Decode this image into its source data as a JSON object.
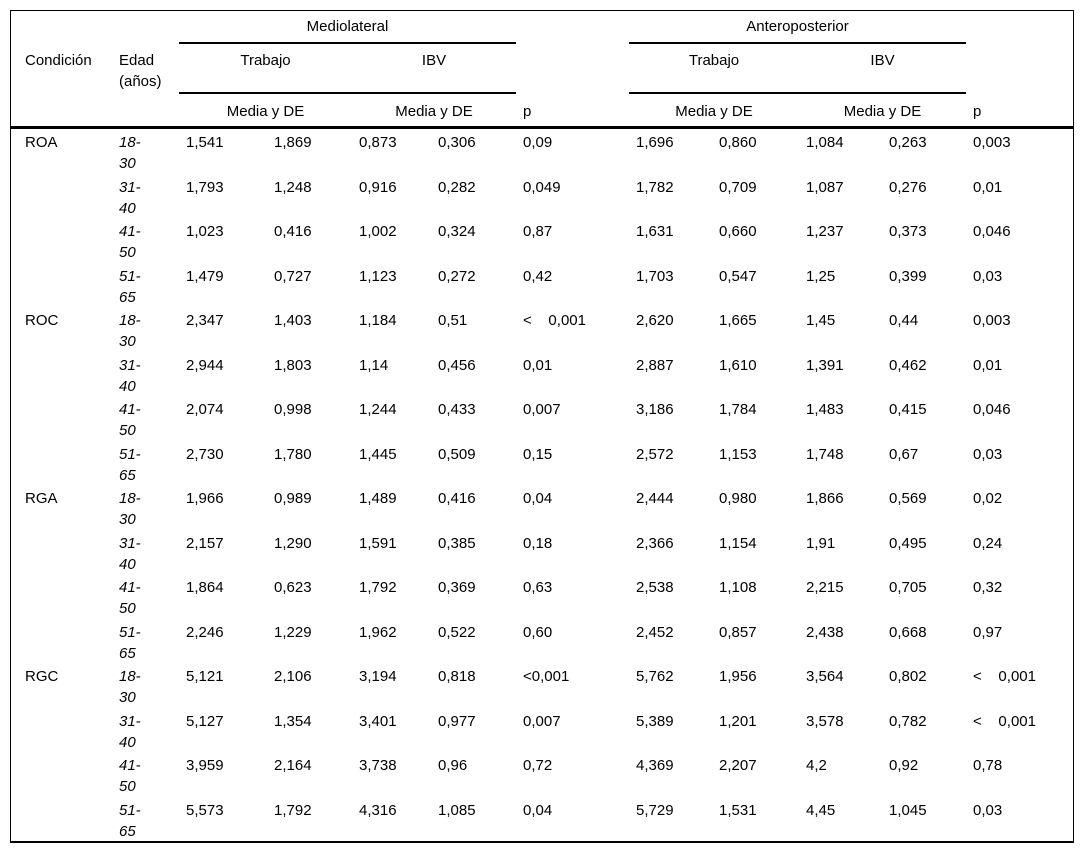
{
  "table": {
    "header": {
      "col_condicion": "Condición",
      "col_edad": "Edad\n(años)",
      "group_mediolateral": "Mediolateral",
      "group_anteroposterior": "Anteroposterior",
      "sub_trabajo": "Trabajo",
      "sub_ibv": "IBV",
      "media_de": "Media y DE",
      "p_label": "p"
    },
    "rows": [
      {
        "condicion": "ROA",
        "edad": "18-\n30",
        "ml_trabajo": [
          "1,541",
          "1,869"
        ],
        "ml_ibv": [
          "0,873",
          "0,306"
        ],
        "p_ml": "0,09",
        "ap_trabajo": [
          "1,696",
          "0,860"
        ],
        "ap_ibv": [
          "1,084",
          "0,263"
        ],
        "p_ap": "0,003"
      },
      {
        "condicion": "",
        "edad": "31-\n40",
        "ml_trabajo": [
          "1,793",
          "1,248"
        ],
        "ml_ibv": [
          "0,916",
          "0,282"
        ],
        "p_ml": "0,049",
        "ap_trabajo": [
          "1,782",
          "0,709"
        ],
        "ap_ibv": [
          "1,087",
          "0,276"
        ],
        "p_ap": "0,01"
      },
      {
        "condicion": "",
        "edad": "41-\n50",
        "ml_trabajo": [
          "1,023",
          "0,416"
        ],
        "ml_ibv": [
          "1,002",
          "0,324"
        ],
        "p_ml": "0,87",
        "ap_trabajo": [
          "1,631",
          "0,660"
        ],
        "ap_ibv": [
          "1,237",
          "0,373"
        ],
        "p_ap": "0,046"
      },
      {
        "condicion": "",
        "edad": "51-\n65",
        "ml_trabajo": [
          "1,479",
          "0,727"
        ],
        "ml_ibv": [
          "1,123",
          "0,272"
        ],
        "p_ml": "0,42",
        "ap_trabajo": [
          "1,703",
          "0,547"
        ],
        "ap_ibv": [
          "1,25",
          "0,399"
        ],
        "p_ap": "0,03"
      },
      {
        "condicion": "ROC",
        "edad": "18-\n30",
        "ml_trabajo": [
          "2,347",
          "1,403"
        ],
        "ml_ibv": [
          "1,184",
          "0,51"
        ],
        "p_ml": "<    0,001",
        "ap_trabajo": [
          "2,620",
          "1,665"
        ],
        "ap_ibv": [
          "1,45",
          "0,44"
        ],
        "p_ap": "0,003"
      },
      {
        "condicion": "",
        "edad": "31-\n40",
        "ml_trabajo": [
          "2,944",
          "1,803"
        ],
        "ml_ibv": [
          "1,14",
          "0,456"
        ],
        "p_ml": "0,01",
        "ap_trabajo": [
          "2,887",
          "1,610"
        ],
        "ap_ibv": [
          "1,391",
          "0,462"
        ],
        "p_ap": "0,01"
      },
      {
        "condicion": "",
        "edad": "41-\n50",
        "ml_trabajo": [
          "2,074",
          "0,998"
        ],
        "ml_ibv": [
          "1,244",
          "0,433"
        ],
        "p_ml": "0,007",
        "ap_trabajo": [
          "3,186",
          "1,784"
        ],
        "ap_ibv": [
          "1,483",
          "0,415"
        ],
        "p_ap": "0,046"
      },
      {
        "condicion": "",
        "edad": "51-\n65",
        "ml_trabajo": [
          "2,730",
          "1,780"
        ],
        "ml_ibv": [
          "1,445",
          "0,509"
        ],
        "p_ml": "0,15",
        "ap_trabajo": [
          "2,572",
          "1,153"
        ],
        "ap_ibv": [
          "1,748",
          "0,67"
        ],
        "p_ap": "0,03"
      },
      {
        "condicion": "RGA",
        "edad": "18-\n30",
        "ml_trabajo": [
          "1,966",
          "0,989"
        ],
        "ml_ibv": [
          "1,489",
          "0,416"
        ],
        "p_ml": "0,04",
        "ap_trabajo": [
          "2,444",
          "0,980"
        ],
        "ap_ibv": [
          "1,866",
          "0,569"
        ],
        "p_ap": "0,02"
      },
      {
        "condicion": "",
        "edad": "31-\n40",
        "ml_trabajo": [
          "2,157",
          "1,290"
        ],
        "ml_ibv": [
          "1,591",
          "0,385"
        ],
        "p_ml": "0,18",
        "ap_trabajo": [
          "2,366",
          "1,154"
        ],
        "ap_ibv": [
          "1,91",
          "0,495"
        ],
        "p_ap": "0,24"
      },
      {
        "condicion": "",
        "edad": "41-\n50",
        "ml_trabajo": [
          "1,864",
          "0,623"
        ],
        "ml_ibv": [
          "1,792",
          "0,369"
        ],
        "p_ml": "0,63",
        "ap_trabajo": [
          "2,538",
          "1,108"
        ],
        "ap_ibv": [
          "2,215",
          "0,705"
        ],
        "p_ap": "0,32"
      },
      {
        "condicion": "",
        "edad": "51-\n65",
        "ml_trabajo": [
          "2,246",
          "1,229"
        ],
        "ml_ibv": [
          "1,962",
          "0,522"
        ],
        "p_ml": "0,60",
        "ap_trabajo": [
          "2,452",
          "0,857"
        ],
        "ap_ibv": [
          "2,438",
          "0,668"
        ],
        "p_ap": "0,97"
      },
      {
        "condicion": "RGC",
        "edad": "18-\n30",
        "ml_trabajo": [
          "5,121",
          "2,106"
        ],
        "ml_ibv": [
          "3,194",
          "0,818"
        ],
        "p_ml": "<0,001",
        "ap_trabajo": [
          "5,762",
          "1,956"
        ],
        "ap_ibv": [
          "3,564",
          "0,802"
        ],
        "p_ap": "<    0,001"
      },
      {
        "condicion": "",
        "edad": "31-\n40",
        "ml_trabajo": [
          "5,127",
          "1,354"
        ],
        "ml_ibv": [
          "3,401",
          "0,977"
        ],
        "p_ml": "0,007",
        "ap_trabajo": [
          "5,389",
          "1,201"
        ],
        "ap_ibv": [
          "3,578",
          "0,782"
        ],
        "p_ap": "<    0,001"
      },
      {
        "condicion": "",
        "edad": "41-\n50",
        "ml_trabajo": [
          "3,959",
          "2,164"
        ],
        "ml_ibv": [
          "3,738",
          "0,96"
        ],
        "p_ml": "0,72",
        "ap_trabajo": [
          "4,369",
          "2,207"
        ],
        "ap_ibv": [
          "4,2",
          "0,92"
        ],
        "p_ap": "0,78"
      },
      {
        "condicion": "",
        "edad": "51-\n65",
        "ml_trabajo": [
          "5,573",
          "1,792"
        ],
        "ml_ibv": [
          "4,316",
          "1,085"
        ],
        "p_ml": "0,04",
        "ap_trabajo": [
          "5,729",
          "1,531"
        ],
        "ap_ibv": [
          "4,45",
          "1,045"
        ],
        "p_ap": "0,03"
      }
    ]
  }
}
